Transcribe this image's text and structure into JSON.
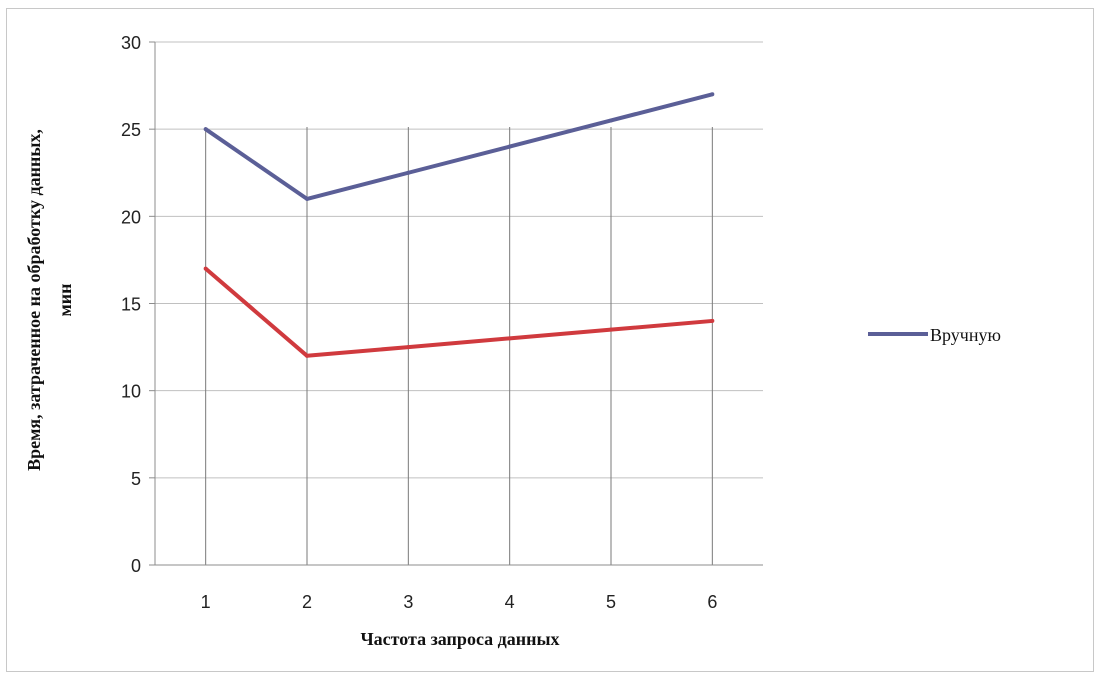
{
  "chart_data": {
    "type": "line",
    "x": [
      1,
      2,
      3,
      4,
      5,
      6
    ],
    "series": [
      {
        "name": "Вручную",
        "values": [
          25,
          21,
          22.5,
          24,
          25.5,
          27
        ],
        "color": "#5b5f97"
      },
      {
        "values": [
          17,
          12,
          12.5,
          13,
          13.5,
          14
        ],
        "color": "#d03a3e"
      }
    ],
    "xlabel": "Частота запроса данных",
    "ylabel_lines": [
      "Время, затраченное на обработку данных,",
      "мин"
    ],
    "ylim": [
      0,
      30
    ],
    "yticks": [
      0,
      5,
      10,
      15,
      20,
      25,
      30
    ],
    "grid": {
      "horizontal": true,
      "vertical": true
    },
    "legend": {
      "placement": "right",
      "entries": [
        "Вручную"
      ]
    }
  }
}
